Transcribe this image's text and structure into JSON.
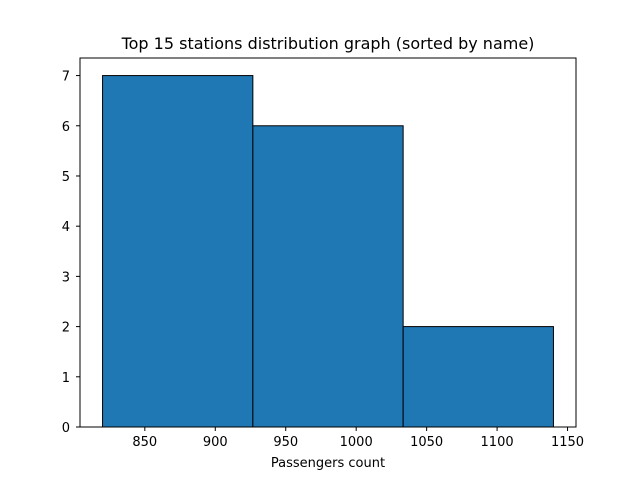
{
  "chart_data": {
    "type": "bar",
    "title": "Top 15 stations distribution graph (sorted by name)",
    "xlabel": "Passengers count",
    "ylabel": "",
    "bins": [
      {
        "x0": 820,
        "x1": 926.67,
        "count": 7
      },
      {
        "x0": 926.67,
        "x1": 1033.33,
        "count": 6
      },
      {
        "x0": 1033.33,
        "x1": 1140,
        "count": 2
      }
    ],
    "xlim": [
      804,
      1156
    ],
    "ylim": [
      0,
      7.35
    ],
    "xticks": [
      850,
      900,
      950,
      1000,
      1050,
      1100,
      1150
    ],
    "yticks": [
      0,
      1,
      2,
      3,
      4,
      5,
      6,
      7
    ],
    "grid": false,
    "bar_color": "#1f77b4",
    "edge_color": "#000000"
  }
}
